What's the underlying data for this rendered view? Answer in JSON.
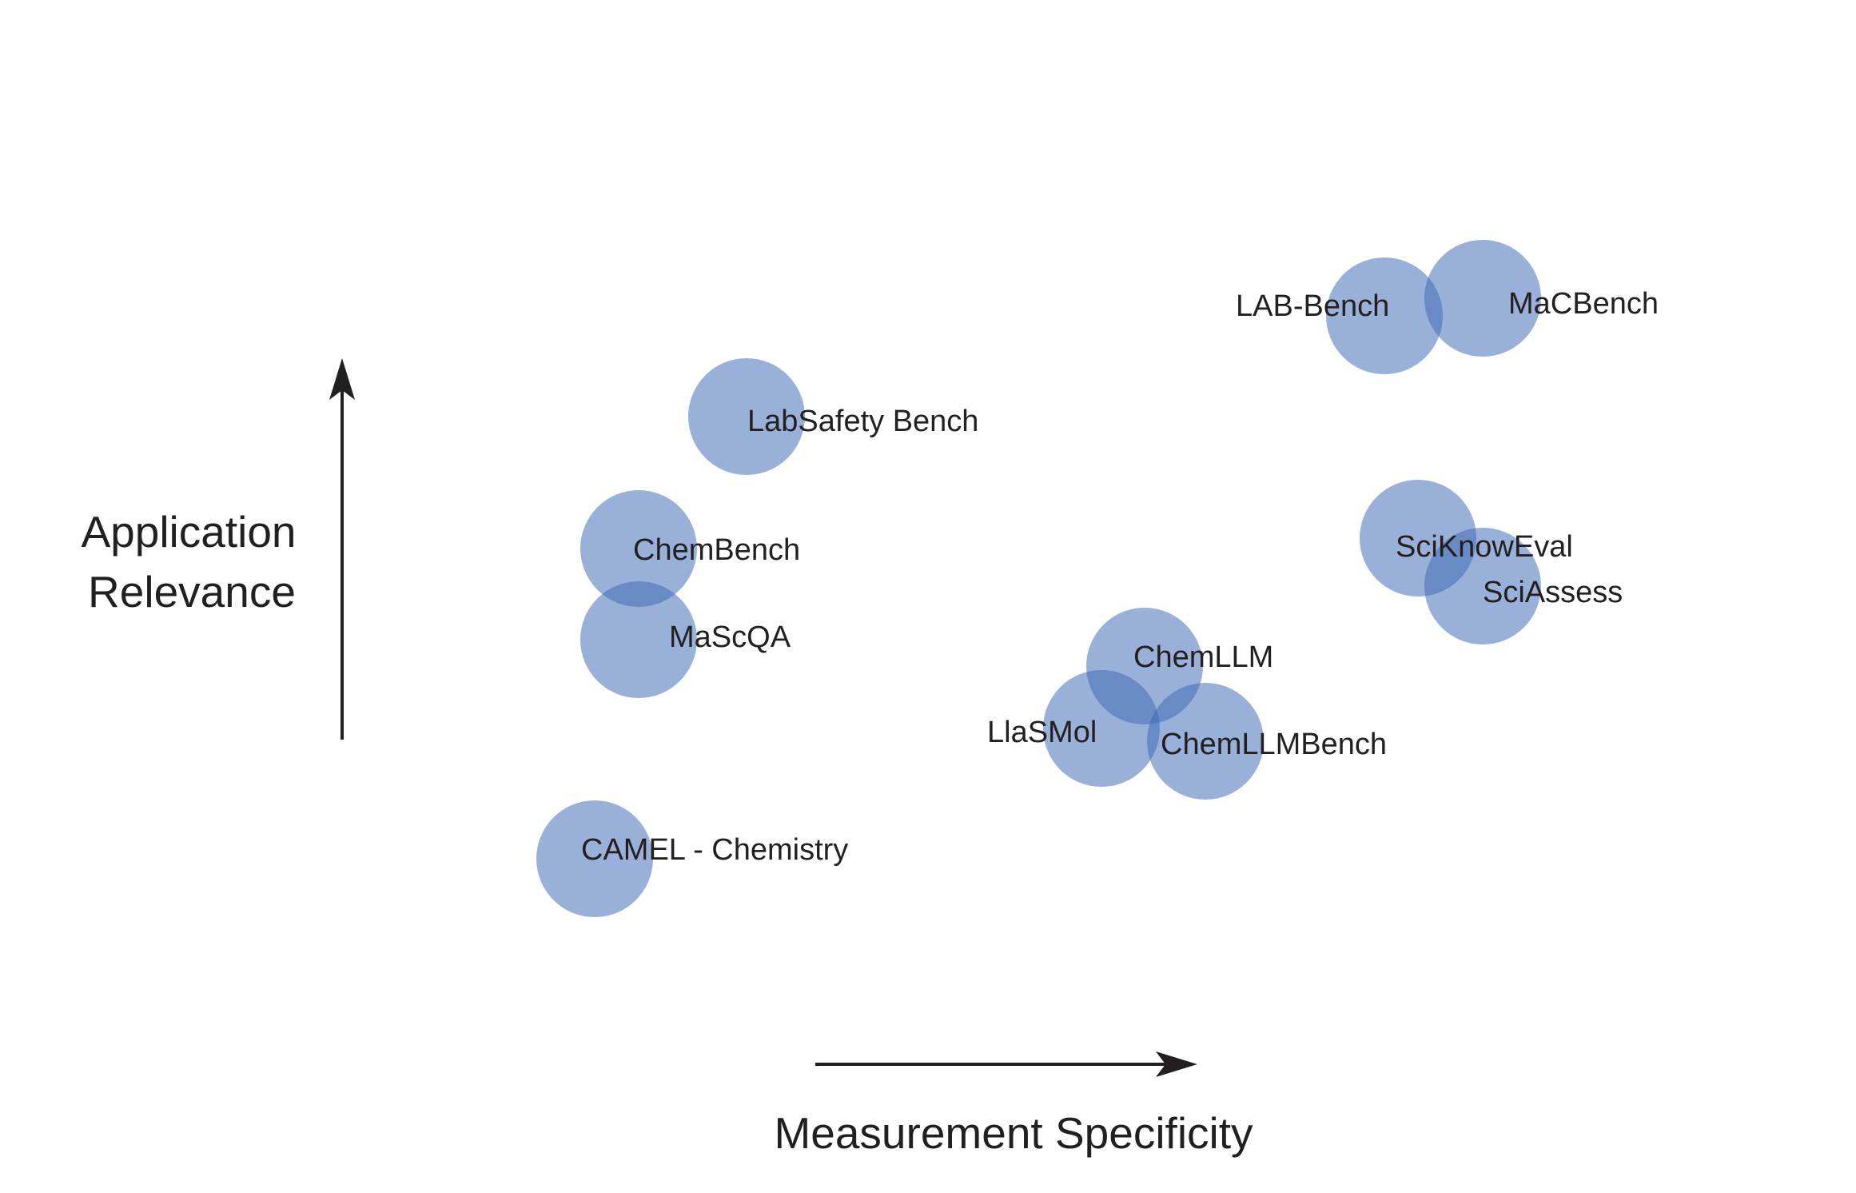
{
  "axes": {
    "x_label": "Measurement Specificity",
    "y_label_lines": [
      "Application",
      "Relevance"
    ]
  },
  "colors": {
    "bubble_fill": "#3b67b5",
    "bubble_opacity": 0.52,
    "text": "#231f20",
    "axis": "#231f20"
  },
  "benchmarks": [
    {
      "id": "lab-bench",
      "label": "LAB-Bench"
    },
    {
      "id": "macbench",
      "label": "MaCBench"
    },
    {
      "id": "labsafety-bench",
      "label": "LabSafety Bench"
    },
    {
      "id": "chembench",
      "label": "ChemBench"
    },
    {
      "id": "mascqa",
      "label": "MaScQA"
    },
    {
      "id": "sciknoweval",
      "label": "SciKnowEval"
    },
    {
      "id": "sciassess",
      "label": "SciAssess"
    },
    {
      "id": "chemllm",
      "label": "ChemLLM"
    },
    {
      "id": "llasmol",
      "label": "LlaSMol"
    },
    {
      "id": "chemllmbench",
      "label": "ChemLLMBench"
    },
    {
      "id": "camel-chemistry",
      "label": "CAMEL - Chemistry"
    }
  ]
}
